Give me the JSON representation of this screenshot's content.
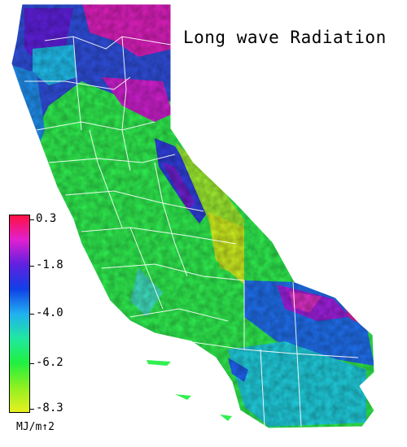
{
  "map": {
    "title": "Long wave Radiation",
    "region": "California",
    "colors": {
      "background": "#ffffff",
      "boundary": "#ffffff",
      "ocean": "#ffffff"
    }
  },
  "legend": {
    "unit": "MJ/m↑2",
    "ticks": [
      "0.3",
      "-1.8",
      "-4.0",
      "-6.2",
      "-8.3"
    ],
    "gradient_stops": [
      "#ff1040",
      "#e020d0",
      "#6020e0",
      "#1040e8",
      "#20b0f0",
      "#20e8a0",
      "#20f040",
      "#90f020",
      "#e8f020"
    ]
  }
}
